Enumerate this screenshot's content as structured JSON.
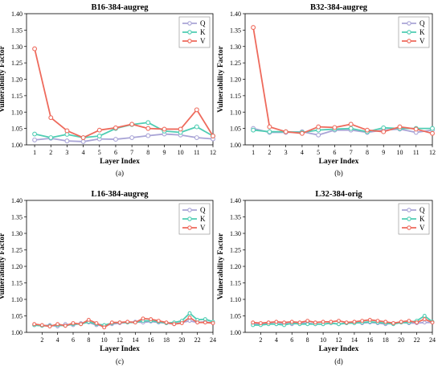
{
  "colors": {
    "Q": "#a9a4d6",
    "K": "#4fcdb3",
    "V": "#ee6a5c"
  },
  "legend": [
    "Q",
    "K",
    "V"
  ],
  "y_axis_label": "Vulnerability Factor",
  "x_axis_label": "Layer Index",
  "chart_data": [
    {
      "type": "line",
      "title": "B16-384-augreg",
      "caption": "(a)",
      "xlabel": "Layer Index",
      "ylabel": "Vulnerability Factor",
      "ylim": [
        1.0,
        1.4
      ],
      "yticks": [
        "1.00",
        "1.05",
        "1.10",
        "1.15",
        "1.20",
        "1.25",
        "1.30",
        "1.35",
        "1.40"
      ],
      "xlim": [
        0.5,
        12
      ],
      "xticks": [
        1,
        2,
        3,
        4,
        5,
        6,
        7,
        8,
        9,
        10,
        11,
        12
      ],
      "grid": false,
      "legend_position": "top-right",
      "x": [
        1,
        2,
        3,
        4,
        5,
        6,
        7,
        8,
        9,
        10,
        11,
        12
      ],
      "series": [
        {
          "name": "Q",
          "values": [
            1.015,
            1.02,
            1.012,
            1.01,
            1.018,
            1.017,
            1.022,
            1.028,
            1.033,
            1.03,
            1.022,
            1.018
          ]
        },
        {
          "name": "K",
          "values": [
            1.033,
            1.022,
            1.032,
            1.022,
            1.027,
            1.05,
            1.062,
            1.068,
            1.042,
            1.038,
            1.055,
            1.027
          ]
        },
        {
          "name": "V",
          "values": [
            1.293,
            1.083,
            1.043,
            1.022,
            1.045,
            1.052,
            1.063,
            1.05,
            1.048,
            1.048,
            1.107,
            1.027
          ]
        }
      ]
    },
    {
      "type": "line",
      "title": "B32-384-augreg",
      "caption": "(b)",
      "xlabel": "Layer Index",
      "ylabel": "Vulnerability Factor",
      "ylim": [
        1.0,
        1.4
      ],
      "yticks": [
        "1.00",
        "1.05",
        "1.10",
        "1.15",
        "1.20",
        "1.25",
        "1.30",
        "1.35",
        "1.40"
      ],
      "xlim": [
        0.5,
        12
      ],
      "xticks": [
        1,
        2,
        3,
        4,
        5,
        6,
        7,
        8,
        9,
        10,
        11,
        12
      ],
      "grid": false,
      "legend_position": "top-right",
      "x": [
        1,
        2,
        3,
        4,
        5,
        6,
        7,
        8,
        9,
        10,
        11,
        12
      ],
      "series": [
        {
          "name": "Q",
          "values": [
            1.05,
            1.038,
            1.038,
            1.04,
            1.03,
            1.045,
            1.045,
            1.038,
            1.045,
            1.048,
            1.038,
            1.045
          ]
        },
        {
          "name": "K",
          "values": [
            1.045,
            1.04,
            1.04,
            1.038,
            1.045,
            1.048,
            1.05,
            1.04,
            1.052,
            1.05,
            1.05,
            1.05
          ]
        },
        {
          "name": "V",
          "values": [
            1.358,
            1.055,
            1.04,
            1.035,
            1.055,
            1.053,
            1.063,
            1.045,
            1.04,
            1.055,
            1.048,
            1.035
          ]
        }
      ]
    },
    {
      "type": "line",
      "title": "L16-384-augreg",
      "caption": "(c)",
      "xlabel": "Layer Index",
      "ylabel": "Vulnerability Factor",
      "ylim": [
        1.0,
        1.4
      ],
      "yticks": [
        "1.00",
        "1.05",
        "1.10",
        "1.15",
        "1.20",
        "1.25",
        "1.30",
        "1.35",
        "1.40"
      ],
      "xlim": [
        0,
        24
      ],
      "xticks": [
        2,
        4,
        6,
        8,
        10,
        12,
        14,
        16,
        18,
        20,
        22,
        24
      ],
      "grid": false,
      "legend_position": "top-right",
      "x": [
        1,
        2,
        3,
        4,
        5,
        6,
        7,
        8,
        9,
        10,
        11,
        12,
        13,
        14,
        15,
        16,
        17,
        18,
        19,
        20,
        21,
        22,
        23,
        24
      ],
      "series": [
        {
          "name": "Q",
          "values": [
            1.022,
            1.02,
            1.022,
            1.018,
            1.025,
            1.022,
            1.028,
            1.03,
            1.022,
            1.02,
            1.025,
            1.028,
            1.03,
            1.032,
            1.03,
            1.033,
            1.03,
            1.028,
            1.025,
            1.03,
            1.035,
            1.03,
            1.032,
            1.028
          ]
        },
        {
          "name": "K",
          "values": [
            1.022,
            1.02,
            1.02,
            1.022,
            1.02,
            1.025,
            1.025,
            1.032,
            1.025,
            1.022,
            1.028,
            1.03,
            1.03,
            1.03,
            1.035,
            1.035,
            1.032,
            1.028,
            1.03,
            1.035,
            1.058,
            1.038,
            1.04,
            1.032
          ]
        },
        {
          "name": "V",
          "values": [
            1.025,
            1.022,
            1.018,
            1.025,
            1.02,
            1.028,
            1.025,
            1.038,
            1.028,
            1.015,
            1.03,
            1.03,
            1.032,
            1.03,
            1.042,
            1.04,
            1.035,
            1.03,
            1.025,
            1.028,
            1.045,
            1.03,
            1.03,
            1.028
          ]
        }
      ]
    },
    {
      "type": "line",
      "title": "L32-384-orig",
      "caption": "(d)",
      "xlabel": "Layer Index",
      "ylabel": "Vulnerability Factor",
      "ylim": [
        1.0,
        1.4
      ],
      "yticks": [
        "1.00",
        "1.05",
        "1.10",
        "1.15",
        "1.20",
        "1.25",
        "1.30",
        "1.35",
        "1.40"
      ],
      "xlim": [
        0,
        24
      ],
      "xticks": [
        2,
        4,
        6,
        8,
        10,
        12,
        14,
        16,
        18,
        20,
        22,
        24
      ],
      "grid": false,
      "legend_position": "top-right",
      "x": [
        1,
        2,
        3,
        4,
        5,
        6,
        7,
        8,
        9,
        10,
        11,
        12,
        13,
        14,
        15,
        16,
        17,
        18,
        19,
        20,
        21,
        22,
        23,
        24
      ],
      "series": [
        {
          "name": "Q",
          "values": [
            1.025,
            1.025,
            1.028,
            1.025,
            1.028,
            1.025,
            1.028,
            1.028,
            1.025,
            1.025,
            1.028,
            1.025,
            1.028,
            1.03,
            1.028,
            1.03,
            1.028,
            1.025,
            1.028,
            1.03,
            1.028,
            1.028,
            1.03,
            1.03
          ]
        },
        {
          "name": "K",
          "values": [
            1.022,
            1.022,
            1.025,
            1.025,
            1.022,
            1.028,
            1.025,
            1.025,
            1.025,
            1.025,
            1.028,
            1.025,
            1.028,
            1.028,
            1.03,
            1.032,
            1.03,
            1.028,
            1.025,
            1.03,
            1.03,
            1.035,
            1.05,
            1.032
          ]
        },
        {
          "name": "V",
          "values": [
            1.03,
            1.028,
            1.03,
            1.032,
            1.03,
            1.032,
            1.03,
            1.035,
            1.03,
            1.032,
            1.032,
            1.035,
            1.03,
            1.032,
            1.035,
            1.038,
            1.035,
            1.032,
            1.028,
            1.032,
            1.035,
            1.03,
            1.04,
            1.03
          ]
        }
      ]
    }
  ]
}
